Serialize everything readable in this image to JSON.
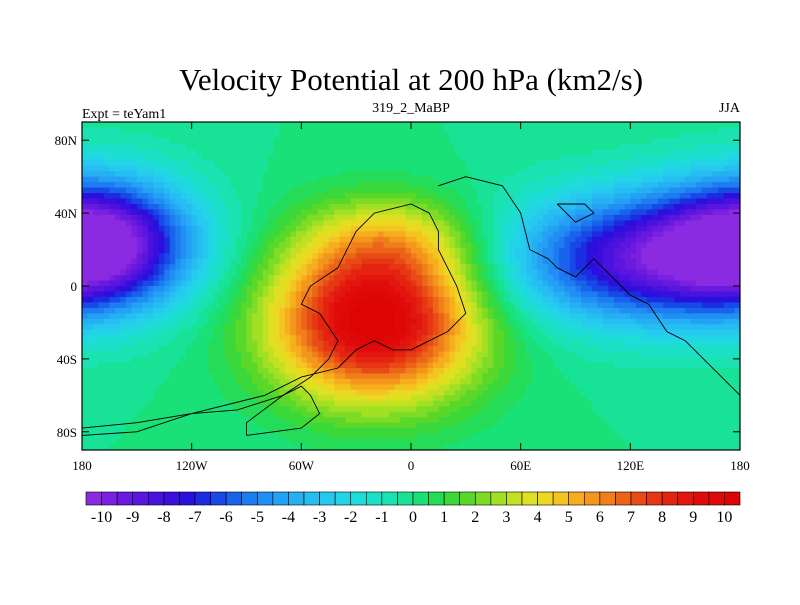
{
  "chart_data": {
    "type": "heatmap",
    "title": "Velocity Potential at 200 hPa (km2/s)",
    "center_string": "319_2_MaBP",
    "left_string": "Expt = teYam1",
    "right_string": "JJA",
    "xlim": [
      -180,
      180
    ],
    "ylim": [
      -90,
      90
    ],
    "x_ticks": [
      {
        "value": -180,
        "label": "180"
      },
      {
        "value": -120,
        "label": "120W"
      },
      {
        "value": -60,
        "label": "60W"
      },
      {
        "value": 0,
        "label": "0"
      },
      {
        "value": 60,
        "label": "60E"
      },
      {
        "value": 120,
        "label": "120E"
      },
      {
        "value": 180,
        "label": "180"
      }
    ],
    "y_ticks": [
      {
        "value": 80,
        "label": "80N"
      },
      {
        "value": 40,
        "label": "40N"
      },
      {
        "value": 0,
        "label": "0"
      },
      {
        "value": -40,
        "label": "40S"
      },
      {
        "value": -80,
        "label": "80S"
      }
    ],
    "colorbar": {
      "min": -10.5,
      "max": 10.5,
      "step": 0.5,
      "labels": [
        "-10",
        "-9",
        "-8",
        "-7",
        "-6",
        "-5",
        "-4",
        "-3",
        "-2",
        "-1",
        "0",
        "1",
        "2",
        "3",
        "4",
        "5",
        "6",
        "7",
        "8",
        "9",
        "10"
      ],
      "label_values": [
        -10,
        -9,
        -8,
        -7,
        -6,
        -5,
        -4,
        -3,
        -2,
        -1,
        0,
        1,
        2,
        3,
        4,
        5,
        6,
        7,
        8,
        9,
        10
      ],
      "colors": [
        "#8a2be2",
        "#7a20e0",
        "#6a1adf",
        "#5a16de",
        "#4a12dd",
        "#3a0edc",
        "#2a10dc",
        "#1c2ce0",
        "#1848e6",
        "#1862ec",
        "#1c7cf0",
        "#208ef2",
        "#24a0f4",
        "#26b0f4",
        "#26bef2",
        "#26caee",
        "#22d4e6",
        "#1edcd8",
        "#1ce0c6",
        "#1ae2b0",
        "#18e296",
        "#1ae078",
        "#24dc58",
        "#3ad83a",
        "#5ad82a",
        "#7edc26",
        "#a2e024",
        "#c4e022",
        "#dee022",
        "#ecd822",
        "#f4c420",
        "#f6ae1e",
        "#f4961c",
        "#f07e1a",
        "#ec6418",
        "#e84c16",
        "#e63614",
        "#e42410",
        "#e2160e",
        "#e00c0c",
        "#de0808",
        "#dc0404"
      ]
    },
    "centers": [
      {
        "lon": -20,
        "lat": -20,
        "amp": 10.5,
        "sx": 40,
        "sy": 30
      },
      {
        "lon": -10,
        "lat": 25,
        "amp": 3.0,
        "sx": 35,
        "sy": 18
      },
      {
        "lon": -170,
        "lat": 25,
        "amp": -8.5,
        "sx": 35,
        "sy": 25
      },
      {
        "lon": 130,
        "lat": 15,
        "amp": -8.5,
        "sx": 55,
        "sy": 25
      }
    ],
    "continent_outlines": [
      [
        [
          -180,
          -78
        ],
        [
          -150,
          -75
        ],
        [
          -120,
          -70
        ],
        [
          -95,
          -68
        ],
        [
          -70,
          -60
        ],
        [
          -55,
          -50
        ],
        [
          -45,
          -40
        ],
        [
          -40,
          -30
        ],
        [
          -50,
          -15
        ],
        [
          -60,
          -10
        ],
        [
          -55,
          0
        ],
        [
          -40,
          10
        ],
        [
          -35,
          20
        ],
        [
          -30,
          30
        ],
        [
          -20,
          40
        ],
        [
          0,
          45
        ],
        [
          10,
          40
        ],
        [
          15,
          30
        ],
        [
          15,
          20
        ],
        [
          20,
          10
        ],
        [
          25,
          0
        ],
        [
          30,
          -15
        ],
        [
          20,
          -25
        ],
        [
          10,
          -30
        ],
        [
          0,
          -35
        ],
        [
          -10,
          -35
        ],
        [
          -20,
          -30
        ],
        [
          -30,
          -35
        ],
        [
          -40,
          -45
        ],
        [
          -60,
          -50
        ],
        [
          -80,
          -60
        ],
        [
          -120,
          -70
        ],
        [
          -150,
          -80
        ],
        [
          -180,
          -82
        ]
      ],
      [
        [
          -90,
          -82
        ],
        [
          -60,
          -78
        ],
        [
          -50,
          -70
        ],
        [
          -55,
          -60
        ],
        [
          -60,
          -55
        ],
        [
          -70,
          -60
        ],
        [
          -90,
          -75
        ],
        [
          -90,
          -82
        ]
      ],
      [
        [
          15,
          55
        ],
        [
          30,
          60
        ],
        [
          50,
          55
        ],
        [
          60,
          40
        ],
        [
          65,
          20
        ],
        [
          75,
          15
        ],
        [
          80,
          10
        ],
        [
          90,
          5
        ],
        [
          100,
          15
        ],
        [
          110,
          5
        ],
        [
          120,
          -5
        ],
        [
          130,
          -10
        ],
        [
          140,
          -25
        ],
        [
          150,
          -30
        ],
        [
          170,
          -50
        ],
        [
          180,
          -60
        ]
      ],
      [
        [
          80,
          45
        ],
        [
          95,
          45
        ],
        [
          100,
          40
        ],
        [
          90,
          35
        ],
        [
          80,
          45
        ]
      ]
    ]
  }
}
